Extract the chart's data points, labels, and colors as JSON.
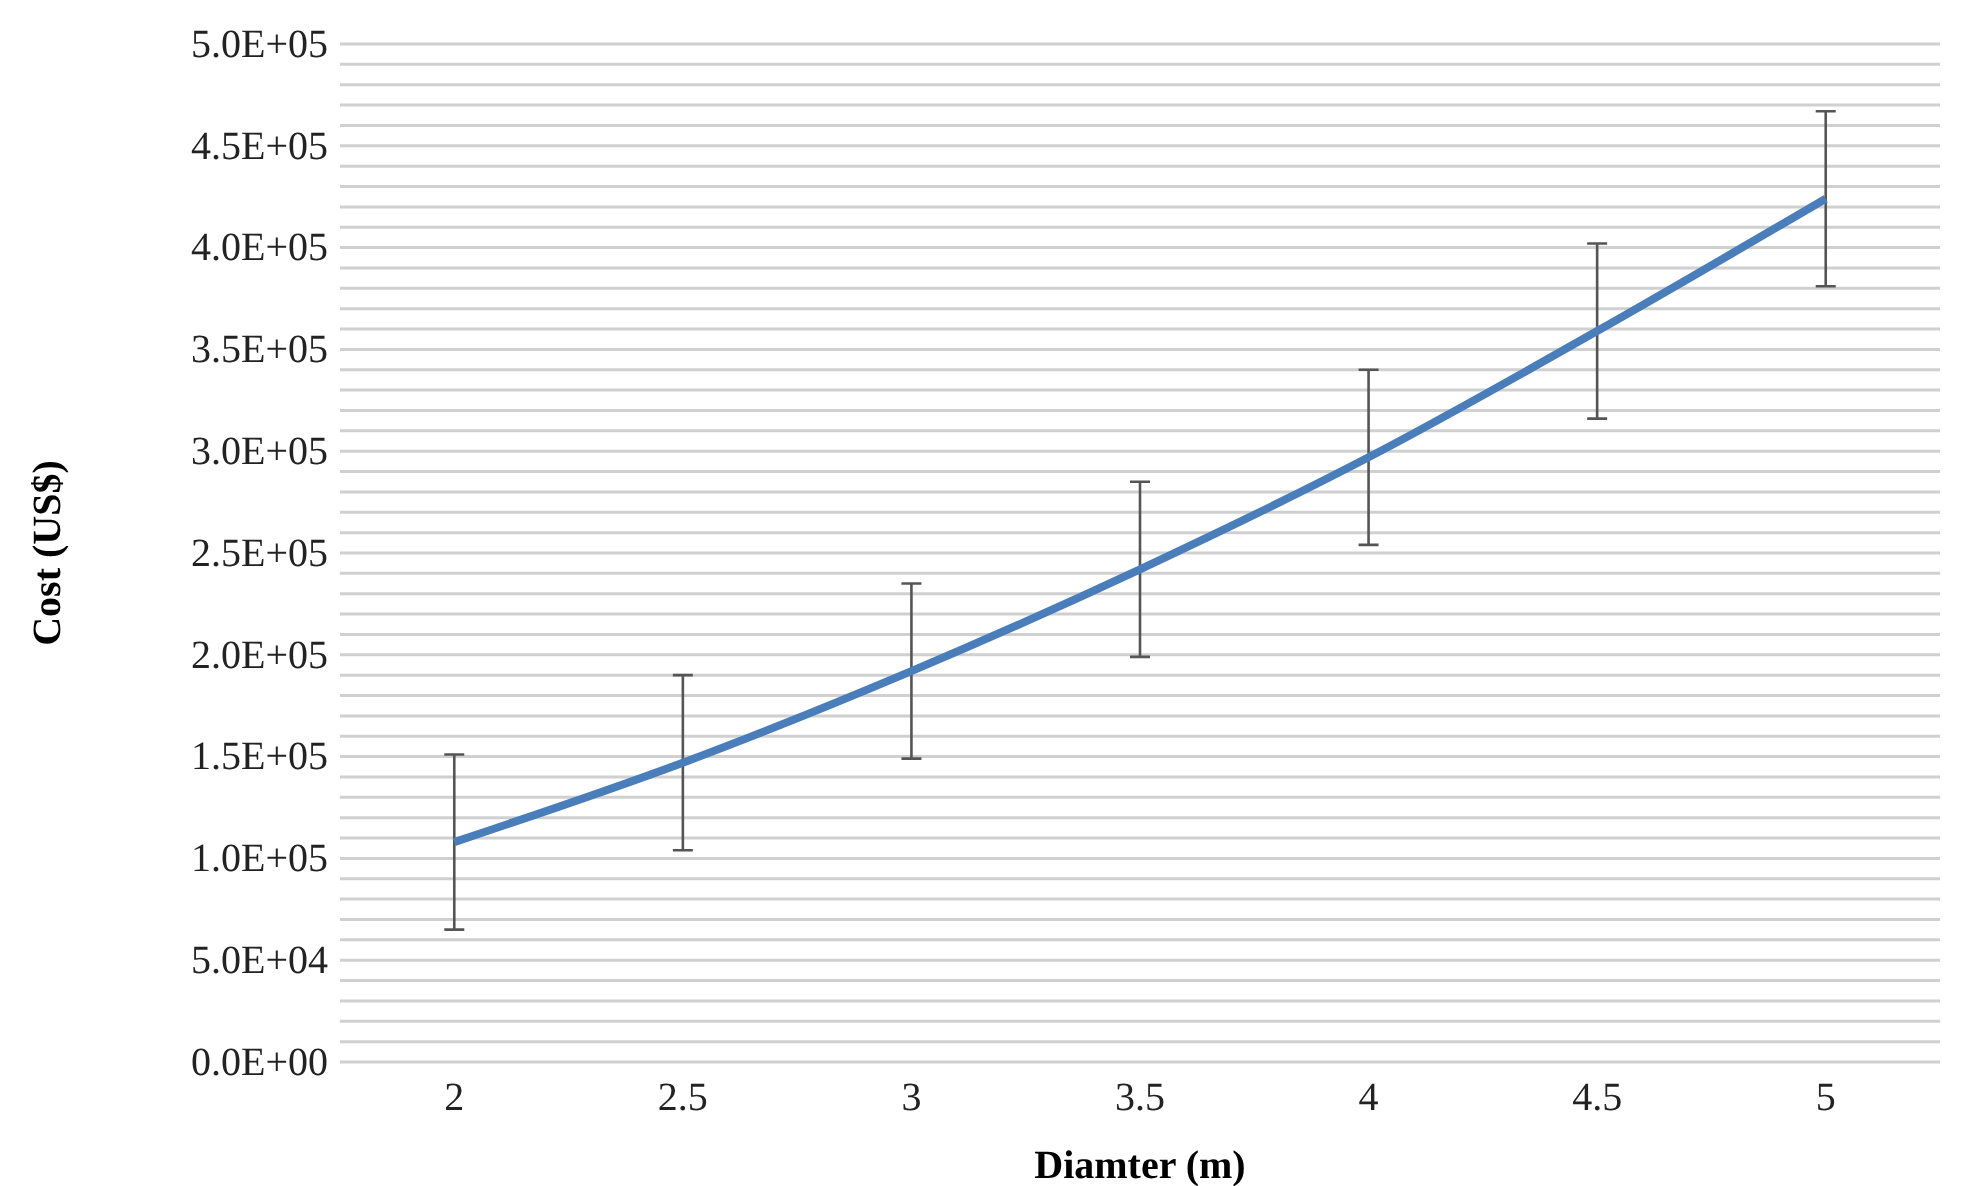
{
  "chart_data": {
    "type": "line",
    "xlabel": "Diamter (m)",
    "ylabel": "Cost (US$)",
    "categories": [
      "2",
      "2.5",
      "3",
      "3.5",
      "4",
      "4.5",
      "5"
    ],
    "series": [
      {
        "color": "#4a7ebb",
        "values": [
          108000,
          147000,
          192000,
          242000,
          297000,
          359000,
          424000
        ],
        "errors": [
          43000,
          43000,
          43000,
          43000,
          43000,
          43000,
          43000
        ]
      }
    ],
    "ylim": [
      0,
      500000
    ],
    "yticks": [
      {
        "value": 0,
        "label": "0.0E+00"
      },
      {
        "value": 10000,
        "label": null
      },
      {
        "value": 20000,
        "label": null
      },
      {
        "value": 30000,
        "label": null
      },
      {
        "value": 40000,
        "label": null
      },
      {
        "value": 50000,
        "label": "5.0E+04"
      },
      {
        "value": 60000,
        "label": null
      },
      {
        "value": 70000,
        "label": null
      },
      {
        "value": 80000,
        "label": null
      },
      {
        "value": 90000,
        "label": null
      },
      {
        "value": 100000,
        "label": "1.0E+05"
      },
      {
        "value": 110000,
        "label": null
      },
      {
        "value": 120000,
        "label": null
      },
      {
        "value": 130000,
        "label": null
      },
      {
        "value": 140000,
        "label": null
      },
      {
        "value": 150000,
        "label": "1.5E+05"
      },
      {
        "value": 160000,
        "label": null
      },
      {
        "value": 170000,
        "label": null
      },
      {
        "value": 180000,
        "label": null
      },
      {
        "value": 190000,
        "label": null
      },
      {
        "value": 200000,
        "label": "2.0E+05"
      },
      {
        "value": 210000,
        "label": null
      },
      {
        "value": 220000,
        "label": null
      },
      {
        "value": 230000,
        "label": null
      },
      {
        "value": 240000,
        "label": null
      },
      {
        "value": 250000,
        "label": "2.5E+05"
      },
      {
        "value": 260000,
        "label": null
      },
      {
        "value": 270000,
        "label": null
      },
      {
        "value": 280000,
        "label": null
      },
      {
        "value": 290000,
        "label": null
      },
      {
        "value": 300000,
        "label": "3.0E+05"
      },
      {
        "value": 310000,
        "label": null
      },
      {
        "value": 320000,
        "label": null
      },
      {
        "value": 330000,
        "label": null
      },
      {
        "value": 340000,
        "label": null
      },
      {
        "value": 350000,
        "label": "3.5E+05"
      },
      {
        "value": 360000,
        "label": null
      },
      {
        "value": 370000,
        "label": null
      },
      {
        "value": 380000,
        "label": null
      },
      {
        "value": 390000,
        "label": null
      },
      {
        "value": 400000,
        "label": "4.0E+05"
      },
      {
        "value": 410000,
        "label": null
      },
      {
        "value": 420000,
        "label": null
      },
      {
        "value": 430000,
        "label": null
      },
      {
        "value": 440000,
        "label": null
      },
      {
        "value": 450000,
        "label": "4.5E+05"
      },
      {
        "value": 460000,
        "label": null
      },
      {
        "value": 470000,
        "label": null
      },
      {
        "value": 480000,
        "label": null
      },
      {
        "value": 490000,
        "label": null
      },
      {
        "value": 500000,
        "label": "5.0E+05"
      }
    ],
    "grid": "y",
    "line_style": "solid",
    "marker": "none"
  }
}
